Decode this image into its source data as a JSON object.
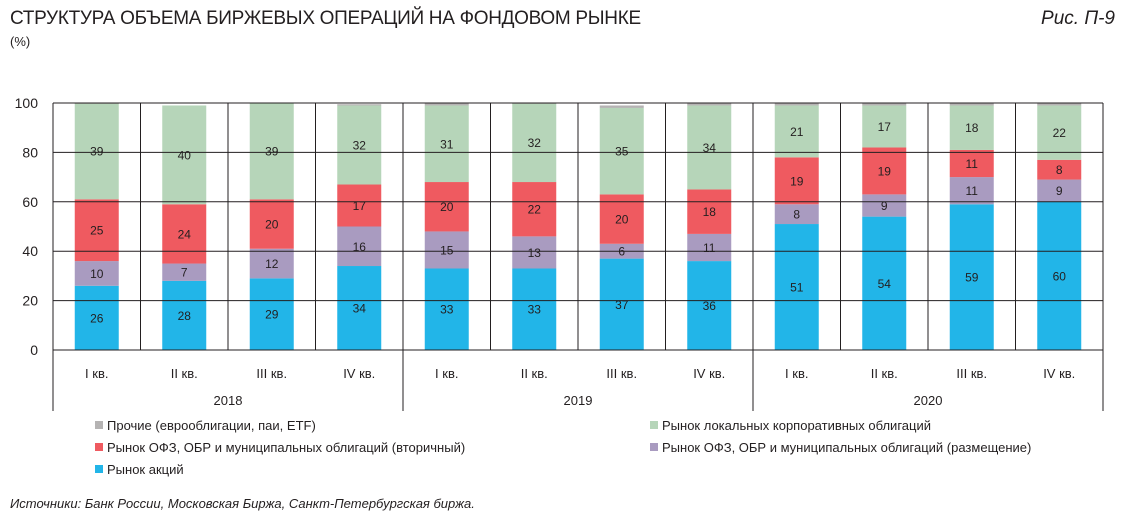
{
  "title": "СТРУКТУРА ОБЪЕМА БИРЖЕВЫХ ОПЕРАЦИЙ НА ФОНДОВОМ РЫНКЕ",
  "figure_label": "Рис. П-9",
  "source": "Источники: Банк России, Московская Биржа, Санкт-Петербургская биржа.",
  "chart_data": {
    "type": "bar",
    "stacked": true,
    "unit_label": "(%)",
    "ylim": [
      0,
      100
    ],
    "yticks": [
      0,
      20,
      40,
      60,
      80,
      100
    ],
    "grid": true,
    "legend_position": "bottom",
    "categories": [
      "I кв.",
      "II кв.",
      "III кв.",
      "IV кв.",
      "I кв.",
      "II кв.",
      "III кв.",
      "IV кв.",
      "I кв.",
      "II кв.",
      "III кв.",
      "IV кв."
    ],
    "groups": [
      {
        "label": "2018",
        "count": 4
      },
      {
        "label": "2019",
        "count": 4
      },
      {
        "label": "2020",
        "count": 4
      }
    ],
    "series": [
      {
        "name": "Рынок акций",
        "color": "#22b5e8",
        "values": [
          26,
          28,
          29,
          34,
          33,
          33,
          37,
          36,
          51,
          54,
          59,
          60
        ],
        "labeled": true
      },
      {
        "name": "Рынок ОФЗ, ОБР и муниципальных облигаций (размещение)",
        "color": "#a99bc0",
        "values": [
          10,
          7,
          12,
          16,
          15,
          13,
          6,
          11,
          8,
          9,
          11,
          9
        ],
        "labeled": true
      },
      {
        "name": "Рынок ОФЗ, ОБР и муниципальных облигаций (вторичный)",
        "color": "#ef5a60",
        "values": [
          25,
          24,
          20,
          17,
          20,
          22,
          20,
          18,
          19,
          19,
          11,
          8
        ],
        "labeled": true
      },
      {
        "name": "Рынок локальных корпоративных облигаций",
        "color": "#b6d5b9",
        "values": [
          39,
          40,
          39,
          32,
          31,
          32,
          35,
          34,
          21,
          17,
          18,
          22
        ],
        "labeled": true
      },
      {
        "name": "Прочие (еврооблигации, паи, ETF)",
        "color": "#b5b3b3",
        "values": [
          0.3,
          0,
          0,
          0.5,
          1,
          1,
          1,
          1,
          1,
          2,
          1,
          1
        ],
        "labeled": false
      }
    ],
    "legend_order": [
      4,
      3,
      2,
      1,
      0
    ]
  }
}
